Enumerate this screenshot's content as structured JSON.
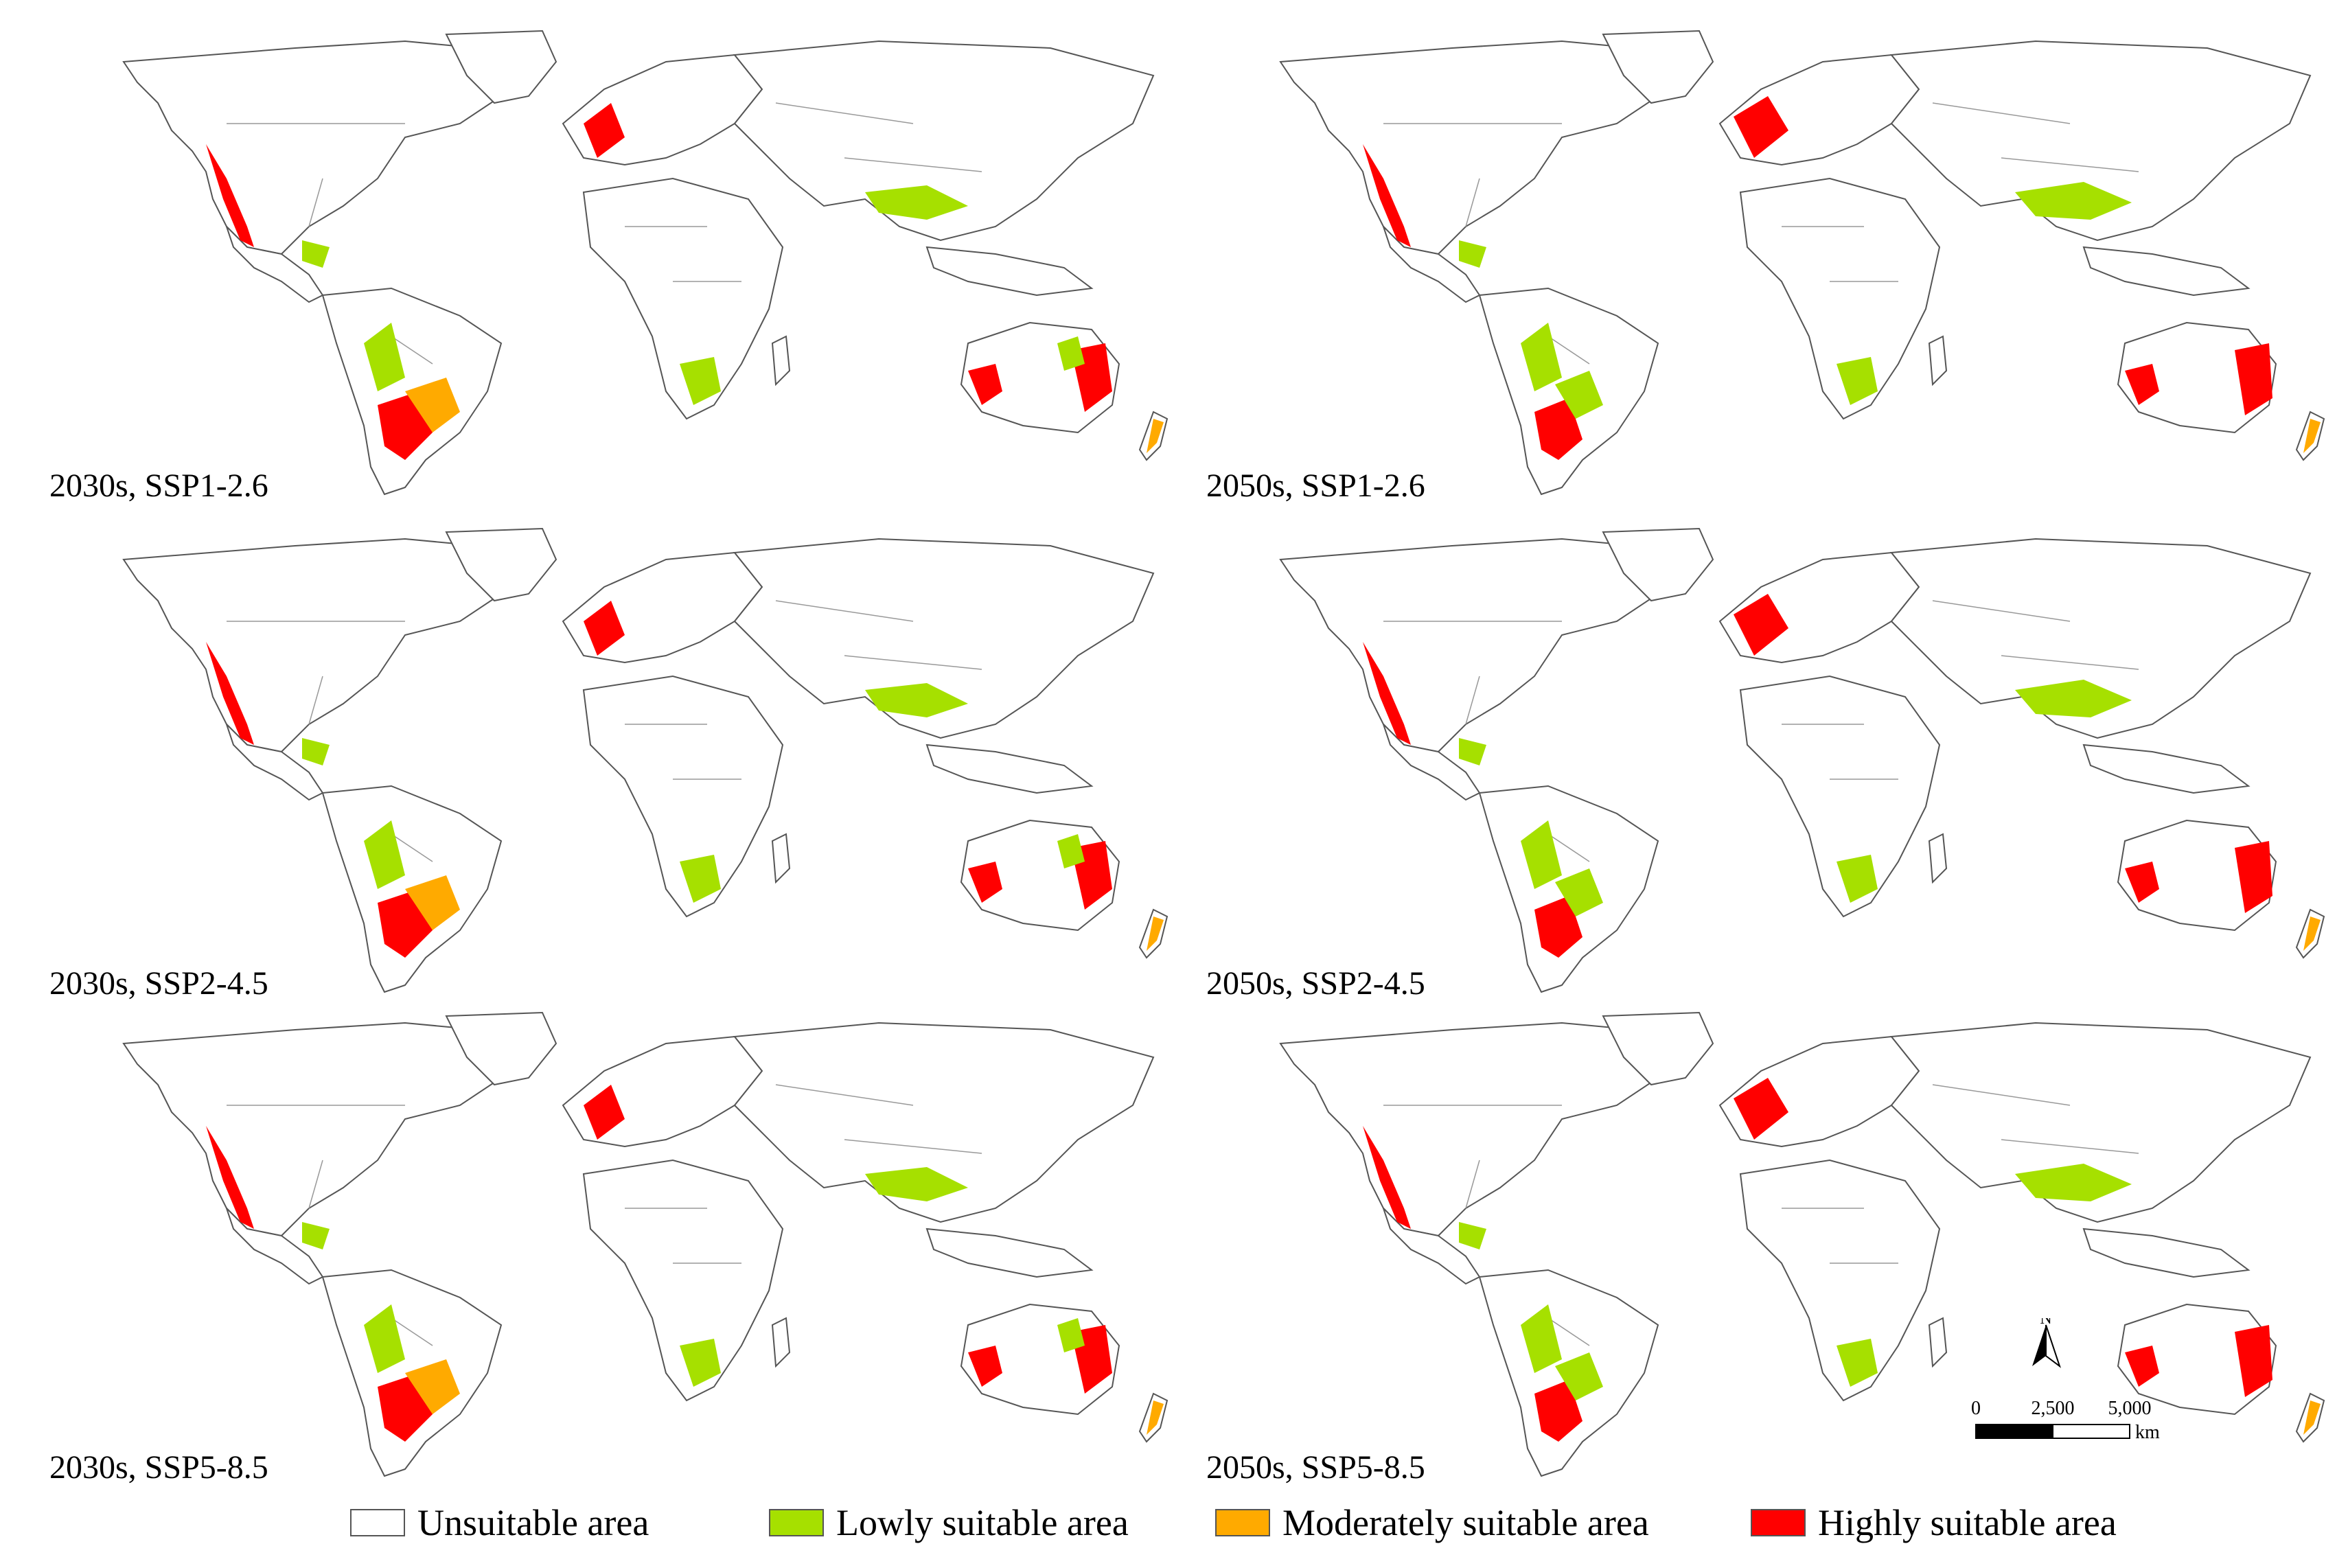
{
  "panels": [
    {
      "id": "p1",
      "label": "2030s, SSP1-2.6"
    },
    {
      "id": "p2",
      "label": "2050s, SSP1-2.6"
    },
    {
      "id": "p3",
      "label": "2030s, SSP2-4.5"
    },
    {
      "id": "p4",
      "label": "2050s, SSP2-4.5"
    },
    {
      "id": "p5",
      "label": "2030s, SSP5-8.5"
    },
    {
      "id": "p6",
      "label": "2050s, SSP5-8.5"
    }
  ],
  "legend": {
    "unsuitable": {
      "label": "Unsuitable area",
      "color": "#ffffff"
    },
    "low": {
      "label": "Lowly suitable area",
      "color": "#a6e000"
    },
    "moderate": {
      "label": "Moderately suitable area",
      "color": "#ffaa00"
    },
    "high": {
      "label": "Highly suitable area",
      "color": "#ff0000"
    }
  },
  "scale_bar": {
    "north": "N",
    "ticks": [
      "0",
      "2,500",
      "5,000"
    ],
    "unit": "km"
  }
}
